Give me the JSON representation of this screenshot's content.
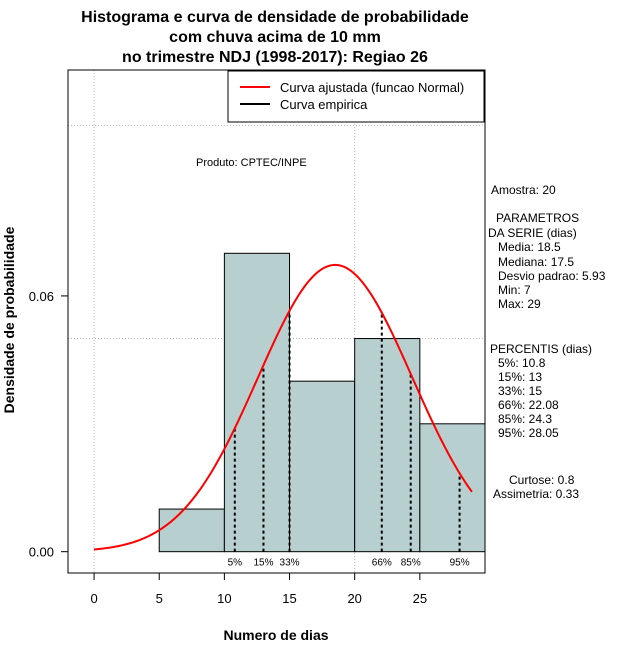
{
  "chart_data": {
    "type": "histogram",
    "title_lines": [
      "Histograma e curva de densidade de probabilidade",
      "com chuva acima de 10 mm",
      "no trimestre NDJ (1998-2017): Regiao 26"
    ],
    "xlabel": "Numero de dias",
    "ylabel": "Densidade de probabilidade",
    "xlim": [
      -2,
      30
    ],
    "ylim": [
      -0.005,
      0.113
    ],
    "x_ticks": [
      0,
      5,
      10,
      15,
      20,
      25
    ],
    "y_ticks": [
      0.0,
      0.06
    ],
    "y_tick_labels": [
      "0.00",
      "0.06"
    ],
    "grid_x": [
      0,
      20
    ],
    "grid_y": [
      0.05,
      0.1
    ],
    "bins": [
      {
        "start": 5,
        "end": 10,
        "density": 0.01
      },
      {
        "start": 10,
        "end": 15,
        "density": 0.07
      },
      {
        "start": 15,
        "end": 20,
        "density": 0.04
      },
      {
        "start": 20,
        "end": 25,
        "density": 0.05
      },
      {
        "start": 25,
        "end": 30,
        "density": 0.03
      }
    ],
    "bar_color": "#b8cfcf",
    "normal_fit": {
      "mean": 18.5,
      "sd": 5.93,
      "x_from": 0,
      "x_to": 29,
      "color": "#ff0000"
    },
    "percentile_lines": [
      {
        "label": "5%",
        "value": 10.8
      },
      {
        "label": "15%",
        "value": 13
      },
      {
        "label": "33%",
        "value": 15
      },
      {
        "label": "66%",
        "value": 22.08
      },
      {
        "label": "85%",
        "value": 24.3
      },
      {
        "label": "95%",
        "value": 28.05
      }
    ],
    "legend": [
      {
        "label": "Curva ajustada (funcao Normal)",
        "color": "#ff0000"
      },
      {
        "label": "Curva empirica",
        "color": "#000000"
      }
    ],
    "source_note": "Produto: CPTEC/INPE"
  },
  "stats": {
    "amostra": "Amostra: 20",
    "param_title_1": "PARAMETROS",
    "param_title_2": "DA SERIE (dias)",
    "param_lines": [
      "Media: 18.5",
      "Mediana: 17.5",
      "Desvio padrao: 5.93",
      "Min: 7",
      "Max: 29"
    ],
    "percentis_title": "PERCENTIS (dias)",
    "percentis_lines": [
      "5%: 10.8",
      "15%: 13",
      "33%: 15",
      "66%: 22.08",
      "85%: 24.3",
      "95%: 28.05"
    ],
    "curtose": "Curtose: 0.8",
    "assimetria": "Assimetria: 0.33"
  }
}
